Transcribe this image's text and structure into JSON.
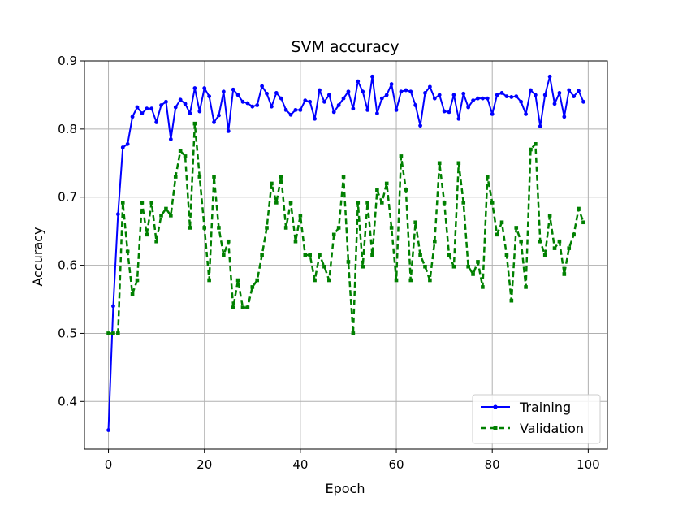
{
  "chart_data": {
    "type": "line",
    "title": "SVM accuracy",
    "xlabel": "Epoch",
    "ylabel": "Accuracy",
    "xlim": [
      -5,
      104
    ],
    "ylim": [
      0.33,
      0.9
    ],
    "xticks": [
      0,
      20,
      40,
      60,
      80,
      100
    ],
    "yticks": [
      0.4,
      0.5,
      0.6,
      0.7,
      0.8,
      0.9
    ],
    "xtick_labels": [
      "0",
      "20",
      "40",
      "60",
      "80",
      "100"
    ],
    "ytick_labels": [
      "0.4",
      "0.5",
      "0.6",
      "0.7",
      "0.8",
      "0.9"
    ],
    "grid": true,
    "legend_position": "lower-right",
    "series": [
      {
        "name": "Training",
        "color": "#0000ff",
        "style": "solid",
        "marker": "circle",
        "x": [
          0,
          1,
          2,
          3,
          4,
          5,
          6,
          7,
          8,
          9,
          10,
          11,
          12,
          13,
          14,
          15,
          16,
          17,
          18,
          19,
          20,
          21,
          22,
          23,
          24,
          25,
          26,
          27,
          28,
          29,
          30,
          31,
          32,
          33,
          34,
          35,
          36,
          37,
          38,
          39,
          40,
          41,
          42,
          43,
          44,
          45,
          46,
          47,
          48,
          49,
          50,
          51,
          52,
          53,
          54,
          55,
          56,
          57,
          58,
          59,
          60,
          61,
          62,
          63,
          64,
          65,
          66,
          67,
          68,
          69,
          70,
          71,
          72,
          73,
          74,
          75,
          76,
          77,
          78,
          79,
          80,
          81,
          82,
          83,
          84,
          85,
          86,
          87,
          88,
          89,
          90,
          91,
          92,
          93,
          94,
          95,
          96,
          97,
          98,
          99
        ],
        "values": [
          0.358,
          0.54,
          0.675,
          0.773,
          0.778,
          0.818,
          0.832,
          0.823,
          0.83,
          0.83,
          0.81,
          0.835,
          0.84,
          0.785,
          0.832,
          0.843,
          0.837,
          0.823,
          0.86,
          0.826,
          0.86,
          0.848,
          0.81,
          0.82,
          0.855,
          0.797,
          0.858,
          0.85,
          0.84,
          0.838,
          0.833,
          0.835,
          0.863,
          0.852,
          0.833,
          0.853,
          0.845,
          0.828,
          0.821,
          0.828,
          0.828,
          0.842,
          0.84,
          0.815,
          0.857,
          0.84,
          0.85,
          0.825,
          0.835,
          0.845,
          0.855,
          0.83,
          0.87,
          0.855,
          0.828,
          0.877,
          0.823,
          0.845,
          0.85,
          0.866,
          0.828,
          0.855,
          0.857,
          0.855,
          0.835,
          0.805,
          0.853,
          0.862,
          0.845,
          0.85,
          0.826,
          0.825,
          0.85,
          0.815,
          0.852,
          0.832,
          0.842,
          0.845,
          0.845,
          0.845,
          0.822,
          0.85,
          0.853,
          0.848,
          0.847,
          0.848,
          0.84,
          0.822,
          0.857,
          0.85,
          0.804,
          0.85,
          0.877,
          0.837,
          0.853,
          0.818,
          0.857,
          0.848,
          0.856,
          0.84
        ]
      },
      {
        "name": "Validation",
        "color": "#008000",
        "style": "dashed",
        "marker": "square",
        "x": [
          0,
          1,
          2,
          3,
          4,
          5,
          6,
          7,
          8,
          9,
          10,
          11,
          12,
          13,
          14,
          15,
          16,
          17,
          18,
          19,
          20,
          21,
          22,
          23,
          24,
          25,
          26,
          27,
          28,
          29,
          30,
          31,
          32,
          33,
          34,
          35,
          36,
          37,
          38,
          39,
          40,
          41,
          42,
          43,
          44,
          45,
          46,
          47,
          48,
          49,
          50,
          51,
          52,
          53,
          54,
          55,
          56,
          57,
          58,
          59,
          60,
          61,
          62,
          63,
          64,
          65,
          66,
          67,
          68,
          69,
          70,
          71,
          72,
          73,
          74,
          75,
          76,
          77,
          78,
          79,
          80,
          81,
          82,
          83,
          84,
          85,
          86,
          87,
          88,
          89,
          90,
          91,
          92,
          93,
          94,
          95,
          96,
          97,
          98,
          99
        ],
        "values": [
          0.5,
          0.5,
          0.5,
          0.692,
          0.62,
          0.558,
          0.578,
          0.692,
          0.645,
          0.692,
          0.635,
          0.673,
          0.683,
          0.673,
          0.73,
          0.768,
          0.76,
          0.655,
          0.808,
          0.73,
          0.655,
          0.578,
          0.73,
          0.655,
          0.615,
          0.635,
          0.538,
          0.578,
          0.538,
          0.538,
          0.568,
          0.578,
          0.615,
          0.655,
          0.72,
          0.692,
          0.73,
          0.655,
          0.692,
          0.635,
          0.673,
          0.615,
          0.615,
          0.578,
          0.615,
          0.598,
          0.578,
          0.645,
          0.655,
          0.73,
          0.605,
          0.5,
          0.692,
          0.598,
          0.692,
          0.615,
          0.71,
          0.692,
          0.72,
          0.655,
          0.578,
          0.76,
          0.711,
          0.578,
          0.663,
          0.615,
          0.598,
          0.578,
          0.635,
          0.75,
          0.692,
          0.615,
          0.598,
          0.75,
          0.692,
          0.598,
          0.587,
          0.605,
          0.568,
          0.73,
          0.692,
          0.645,
          0.663,
          0.615,
          0.548,
          0.655,
          0.635,
          0.568,
          0.77,
          0.778,
          0.635,
          0.615,
          0.673,
          0.625,
          0.635,
          0.587,
          0.625,
          0.645,
          0.683,
          0.663
        ]
      }
    ]
  }
}
